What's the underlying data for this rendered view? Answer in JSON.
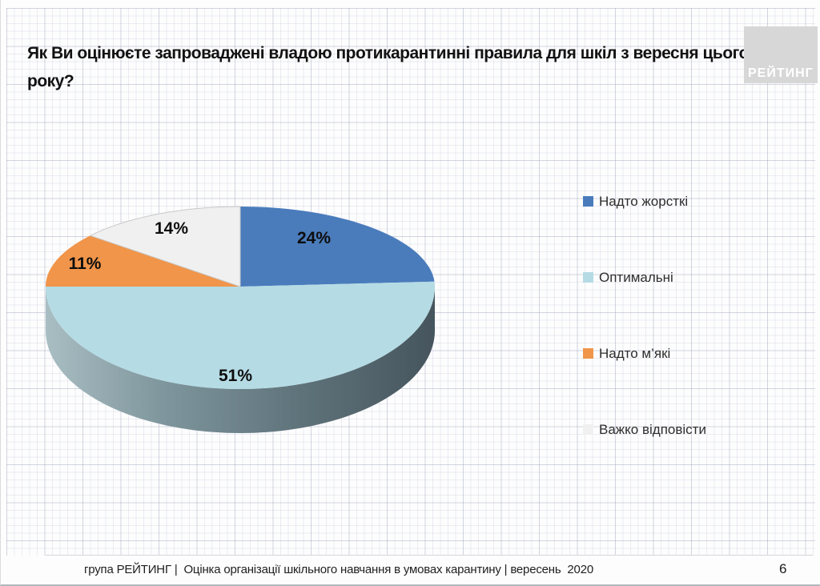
{
  "slide": {
    "title": "Як Ви оцінюєте запроваджені владою протикарантинні правила для шкіл з вересня цього року?",
    "logo_text": "РЕЙТИНГ",
    "footer_text": "група РЕЙТИНГ |  Оцінка організації шкільного навчання в умовах карантину | вересень  2020",
    "page_number": "6"
  },
  "chart_data": {
    "type": "pie",
    "style": "3d",
    "title": "",
    "legend_position": "right",
    "direction": "clockwise",
    "start_angle_deg": 0,
    "value_suffix": "%",
    "slices": [
      {
        "label": "Надто жорсткі",
        "value": 24,
        "color": "#4A7CBC"
      },
      {
        "label": "Оптимальні",
        "value": 51,
        "color": "#B5DBE4"
      },
      {
        "label": "Надто м’які",
        "value": 11,
        "color": "#F0954A"
      },
      {
        "label": "Важко відповісти",
        "value": 14,
        "color": "#F0F0F0",
        "border_color": "#C9C9C9"
      }
    ]
  }
}
